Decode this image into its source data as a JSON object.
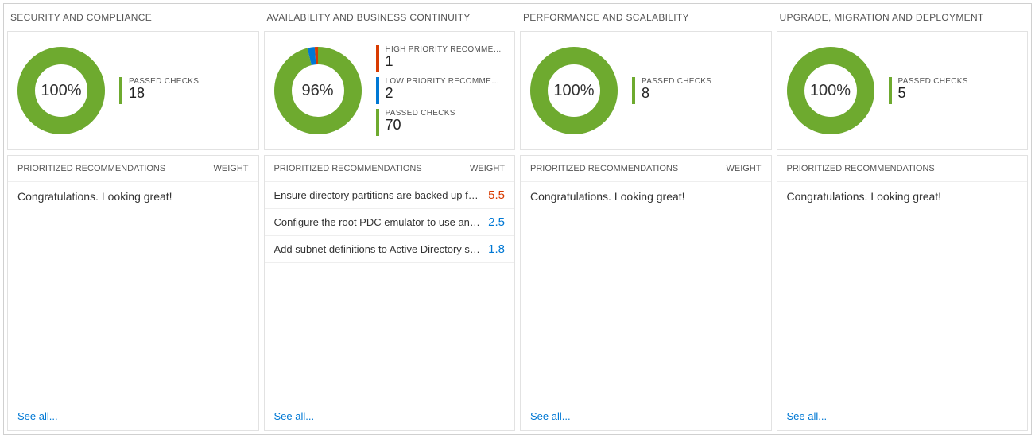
{
  "colors": {
    "green": "#6eaa2f",
    "red": "#d83b01",
    "blue": "#0078d4",
    "track": "#f0f0f0",
    "link": "#0078d4",
    "text": "#333333",
    "muted": "#555555"
  },
  "headers": {
    "recs": "PRIORITIZED RECOMMENDATIONS",
    "weight": "WEIGHT"
  },
  "congrats_text": "Congratulations. Looking great!",
  "see_all_text": "See all...",
  "columns": [
    {
      "title": "SECURITY AND COMPLIANCE",
      "donut": {
        "percent_label": "100%",
        "segments": [
          {
            "color": "#6eaa2f",
            "fraction": 1.0
          }
        ]
      },
      "legend": [
        {
          "label": "PASSED CHECKS",
          "value": "18",
          "color": "#6eaa2f"
        }
      ],
      "recommendations": [],
      "show_weight_header": true
    },
    {
      "title": "AVAILABILITY AND BUSINESS CONTINUITY",
      "donut": {
        "percent_label": "96%",
        "segments": [
          {
            "color": "#6eaa2f",
            "fraction": 0.959
          },
          {
            "color": "#0078d4",
            "fraction": 0.027
          },
          {
            "color": "#d83b01",
            "fraction": 0.014
          }
        ]
      },
      "legend": [
        {
          "label": "HIGH PRIORITY RECOMMENDATI…",
          "value": "1",
          "color": "#d83b01"
        },
        {
          "label": "LOW PRIORITY RECOMMENDATIO…",
          "value": "2",
          "color": "#0078d4"
        },
        {
          "label": "PASSED CHECKS",
          "value": "70",
          "color": "#6eaa2f"
        }
      ],
      "recommendations": [
        {
          "text": "Ensure directory partitions are backed up frequently.",
          "weight": "5.5",
          "weight_color": "#d83b01"
        },
        {
          "text": "Configure the root PDC emulator to use an authorita…",
          "weight": "2.5",
          "weight_color": "#0078d4"
        },
        {
          "text": "Add subnet definitions to Active Directory sites.",
          "weight": "1.8",
          "weight_color": "#0078d4"
        }
      ],
      "show_weight_header": true
    },
    {
      "title": "PERFORMANCE AND SCALABILITY",
      "donut": {
        "percent_label": "100%",
        "segments": [
          {
            "color": "#6eaa2f",
            "fraction": 1.0
          }
        ]
      },
      "legend": [
        {
          "label": "PASSED CHECKS",
          "value": "8",
          "color": "#6eaa2f"
        }
      ],
      "recommendations": [],
      "show_weight_header": true
    },
    {
      "title": "UPGRADE, MIGRATION AND DEPLOYMENT",
      "donut": {
        "percent_label": "100%",
        "segments": [
          {
            "color": "#6eaa2f",
            "fraction": 1.0
          }
        ]
      },
      "legend": [
        {
          "label": "PASSED CHECKS",
          "value": "5",
          "color": "#6eaa2f"
        }
      ],
      "recommendations": [],
      "show_weight_header": false
    }
  ]
}
